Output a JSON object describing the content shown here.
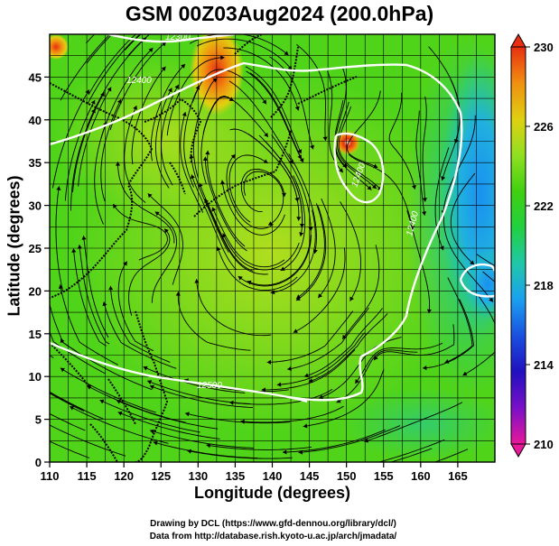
{
  "title": "GSM 00Z03Aug2024 (200.0hPa)",
  "x_axis": {
    "label": "Longitude (degrees)",
    "min": 110,
    "max": 170,
    "ticks": [
      "110",
      "115",
      "120",
      "125",
      "130",
      "135",
      "140",
      "145",
      "150",
      "155",
      "160",
      "165"
    ]
  },
  "y_axis": {
    "label": "Latitude  (degrees)",
    "min": 0,
    "max": 50,
    "ticks": [
      "0",
      "5",
      "10",
      "15",
      "20",
      "25",
      "30",
      "35",
      "40",
      "45"
    ]
  },
  "colorbar": {
    "min": 210,
    "max": 230,
    "labels": [
      "230",
      "226",
      "222",
      "218",
      "214",
      "210"
    ],
    "colors": [
      "#e8189a",
      "#7a10c8",
      "#2010c0",
      "#1a50e0",
      "#1aa0f0",
      "#20c8a8",
      "#20d040",
      "#40d010",
      "#90e020",
      "#e0d010",
      "#f09010",
      "#e83010"
    ]
  },
  "contours": [
    {
      "label": "12400"
    },
    {
      "label": "12500"
    },
    {
      "label": "12300"
    },
    {
      "label": "12400"
    },
    {
      "label": "12400"
    }
  ],
  "credit_line1": "Drawing by DCL (https://www.gfd-dennou.org/library/dcl/)",
  "credit_line2": "Data from http://database.rish.kyoto-u.ac.jp/arch/jmadata/"
}
